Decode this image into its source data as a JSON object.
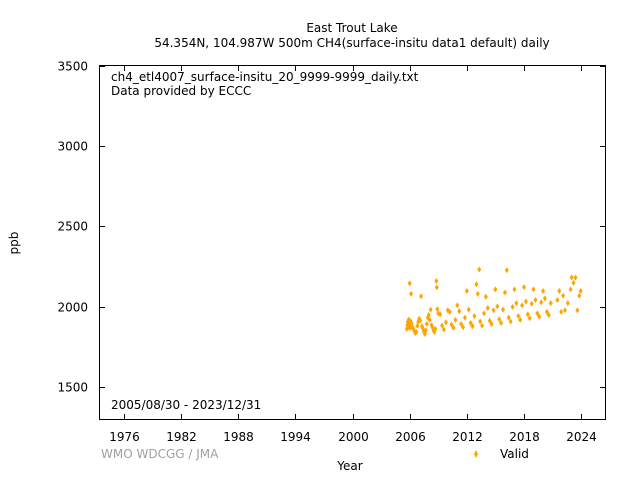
{
  "chart_data": {
    "type": "scatter",
    "title": "East Trout Lake",
    "subtitle": "54.354N, 104.987W 500m    CH4(surface-insitu data1 default) daily",
    "xlabel": "Year",
    "ylabel": "ppb",
    "xlim": [
      1973.5,
      2026.5
    ],
    "ylim": [
      1300,
      3500
    ],
    "xticks": [
      1976,
      1982,
      1988,
      1994,
      2000,
      2006,
      2012,
      2018,
      2024
    ],
    "yticks": [
      1500,
      2000,
      2500,
      3000,
      3500
    ],
    "grid": false,
    "legend_position": "bottom-right",
    "annotations": {
      "filename": "ch4_etl4007_surface-insitu_20_9999-9999_daily.txt",
      "provider": "Data provided by ECCC",
      "date_range": "2005/08/30 - 2023/12/31"
    },
    "credit": "WMO WDCGG / JMA",
    "series": [
      {
        "name": "Valid",
        "color": "#FFA500",
        "marker": "diamond",
        "points": [
          [
            2005.7,
            1862
          ],
          [
            2005.75,
            1885
          ],
          [
            2005.8,
            1905
          ],
          [
            2005.85,
            1870
          ],
          [
            2005.9,
            1920
          ],
          [
            2005.95,
            1878
          ],
          [
            2006.0,
            2145
          ],
          [
            2006.02,
            1898
          ],
          [
            2006.05,
            1868
          ],
          [
            2006.1,
            1910
          ],
          [
            2006.15,
            2080
          ],
          [
            2006.2,
            1895
          ],
          [
            2006.3,
            1872
          ],
          [
            2006.4,
            1860
          ],
          [
            2006.5,
            1850
          ],
          [
            2006.6,
            1835
          ],
          [
            2006.7,
            1842
          ],
          [
            2006.8,
            1880
          ],
          [
            2006.9,
            1905
          ],
          [
            2007.0,
            1925
          ],
          [
            2007.1,
            1915
          ],
          [
            2007.2,
            2065
          ],
          [
            2007.3,
            1878
          ],
          [
            2007.4,
            1862
          ],
          [
            2007.5,
            1845
          ],
          [
            2007.6,
            1830
          ],
          [
            2007.7,
            1852
          ],
          [
            2007.8,
            1892
          ],
          [
            2007.9,
            1932
          ],
          [
            2008.0,
            1948
          ],
          [
            2008.1,
            1918
          ],
          [
            2008.2,
            1982
          ],
          [
            2008.3,
            1885
          ],
          [
            2008.4,
            1870
          ],
          [
            2008.5,
            1852
          ],
          [
            2008.6,
            1842
          ],
          [
            2008.7,
            1862
          ],
          [
            2008.8,
            2160
          ],
          [
            2008.85,
            2120
          ],
          [
            2008.9,
            1985
          ],
          [
            2009.0,
            1958
          ],
          [
            2009.2,
            1952
          ],
          [
            2009.4,
            1882
          ],
          [
            2009.6,
            1858
          ],
          [
            2009.8,
            1902
          ],
          [
            2010.0,
            1978
          ],
          [
            2010.2,
            1968
          ],
          [
            2010.4,
            1888
          ],
          [
            2010.6,
            1868
          ],
          [
            2010.8,
            1918
          ],
          [
            2011.0,
            2008
          ],
          [
            2011.2,
            1972
          ],
          [
            2011.4,
            1892
          ],
          [
            2011.6,
            1872
          ],
          [
            2011.8,
            1932
          ],
          [
            2012.0,
            2098
          ],
          [
            2012.2,
            1982
          ],
          [
            2012.4,
            1898
          ],
          [
            2012.6,
            1878
          ],
          [
            2012.8,
            1942
          ],
          [
            2013.0,
            2140
          ],
          [
            2013.15,
            2080
          ],
          [
            2013.3,
            2232
          ],
          [
            2013.4,
            1908
          ],
          [
            2013.6,
            1882
          ],
          [
            2013.8,
            1958
          ],
          [
            2014.0,
            2062
          ],
          [
            2014.2,
            1992
          ],
          [
            2014.4,
            1912
          ],
          [
            2014.6,
            1892
          ],
          [
            2014.8,
            1978
          ],
          [
            2015.0,
            2108
          ],
          [
            2015.2,
            2002
          ],
          [
            2015.4,
            1922
          ],
          [
            2015.6,
            1898
          ],
          [
            2015.8,
            1982
          ],
          [
            2016.0,
            2088
          ],
          [
            2016.2,
            2228
          ],
          [
            2016.4,
            1932
          ],
          [
            2016.6,
            1908
          ],
          [
            2016.8,
            1998
          ],
          [
            2017.0,
            2108
          ],
          [
            2017.2,
            2022
          ],
          [
            2017.4,
            1942
          ],
          [
            2017.6,
            1918
          ],
          [
            2017.8,
            2008
          ],
          [
            2018.0,
            2122
          ],
          [
            2018.2,
            2032
          ],
          [
            2018.4,
            1952
          ],
          [
            2018.6,
            1928
          ],
          [
            2018.8,
            2018
          ],
          [
            2019.0,
            2108
          ],
          [
            2019.2,
            2042
          ],
          [
            2019.4,
            1958
          ],
          [
            2019.6,
            1938
          ],
          [
            2019.8,
            2028
          ],
          [
            2020.0,
            2098
          ],
          [
            2020.2,
            2052
          ],
          [
            2020.4,
            1968
          ],
          [
            2020.6,
            1948
          ],
          [
            2020.8,
            2022
          ],
          [
            2021.5,
            2042
          ],
          [
            2021.7,
            2098
          ],
          [
            2021.9,
            1968
          ],
          [
            2022.1,
            2068
          ],
          [
            2022.3,
            1978
          ],
          [
            2022.6,
            2022
          ],
          [
            2022.9,
            2108
          ],
          [
            2023.0,
            2182
          ],
          [
            2023.2,
            2148
          ],
          [
            2023.4,
            2182
          ],
          [
            2023.6,
            1978
          ],
          [
            2023.8,
            2068
          ],
          [
            2023.95,
            2098
          ]
        ]
      }
    ]
  }
}
